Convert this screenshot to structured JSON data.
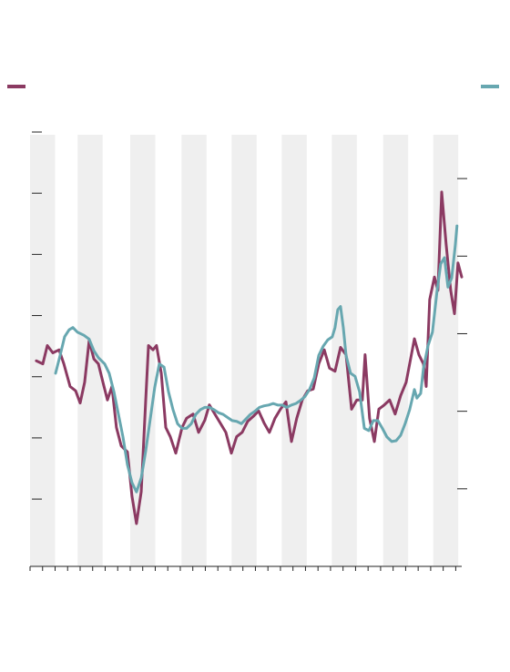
{
  "chart_data": {
    "type": "line",
    "xlim": [
      0,
      17.24
    ],
    "xticks": [
      0,
      0.5,
      1,
      1.5,
      2,
      2.5,
      3,
      3.5,
      4,
      4.5,
      5,
      5.5,
      6,
      6.5,
      7,
      7.5,
      8,
      8.5,
      9,
      9.5,
      10,
      10.5,
      11,
      11.5,
      12,
      12.5,
      13,
      13.5,
      14,
      14.5,
      15,
      15.5,
      16,
      16.5,
      17
    ],
    "ylim": [
      -0.1,
      7
    ],
    "yticks": [
      1,
      2,
      3,
      4,
      5,
      6,
      7
    ],
    "y2lim": [
      0,
      5.6
    ],
    "y2ticks": [
      1,
      2,
      3,
      4,
      5
    ],
    "xbands": [
      [
        0,
        1
      ],
      [
        1.9,
        2.9
      ],
      [
        4,
        5
      ],
      [
        6.05,
        7.05
      ],
      [
        8.05,
        9.05
      ],
      [
        10.05,
        11.05
      ],
      [
        12.05,
        13.05
      ],
      [
        14.1,
        15.1
      ],
      [
        16.1,
        17.1
      ]
    ],
    "band_color": "#efefef",
    "series": [
      {
        "color": "#8b3a62",
        "axis": "y",
        "x": [
          0.25,
          0.51,
          0.69,
          0.91,
          1.16,
          1.35,
          1.6,
          1.82,
          2.0,
          2.18,
          2.36,
          2.55,
          2.73,
          2.91,
          3.09,
          3.27,
          3.45,
          3.64,
          3.89,
          4.07,
          4.25,
          4.44,
          4.62,
          4.73,
          4.91,
          5.05,
          5.24,
          5.42,
          5.6,
          5.82,
          6.07,
          6.25,
          6.51,
          6.73,
          6.98,
          7.16,
          7.38,
          7.6,
          7.82,
          8.04,
          8.25,
          8.47,
          8.69,
          8.91,
          9.13,
          9.35,
          9.56,
          9.78,
          10.0,
          10.22,
          10.44,
          10.65,
          10.87,
          11.09,
          11.31,
          11.53,
          11.75,
          11.96,
          12.18,
          12.4,
          12.62,
          12.84,
          13.05,
          13.27,
          13.38,
          13.56,
          13.75,
          13.93,
          14.15,
          14.36,
          14.58,
          14.8,
          15.02,
          15.16,
          15.35,
          15.53,
          15.71,
          15.82,
          15.96,
          16.15,
          16.29,
          16.44,
          16.62,
          16.8,
          16.95,
          17.09,
          17.24
        ],
        "values": [
          3.26,
          3.21,
          3.51,
          3.39,
          3.44,
          3.21,
          2.84,
          2.77,
          2.57,
          2.91,
          3.59,
          3.29,
          3.21,
          2.91,
          2.62,
          2.84,
          2.17,
          1.87,
          1.77,
          1.05,
          0.6,
          1.12,
          2.62,
          3.51,
          3.44,
          3.51,
          3.06,
          2.17,
          2.02,
          1.75,
          2.17,
          2.32,
          2.39,
          2.09,
          2.29,
          2.54,
          2.39,
          2.24,
          2.09,
          1.75,
          2.02,
          2.09,
          2.27,
          2.35,
          2.44,
          2.24,
          2.09,
          2.32,
          2.47,
          2.59,
          1.94,
          2.32,
          2.62,
          2.77,
          2.8,
          3.21,
          3.44,
          3.14,
          3.09,
          3.48,
          3.36,
          2.47,
          2.62,
          2.62,
          3.36,
          2.32,
          1.94,
          2.47,
          2.54,
          2.62,
          2.39,
          2.69,
          2.91,
          3.21,
          3.62,
          3.36,
          3.21,
          2.84,
          4.26,
          4.63,
          4.41,
          6.02,
          5.15,
          4.41,
          4.03,
          4.86,
          4.63
        ]
      },
      {
        "color": "#67a7b0",
        "axis": "y2",
        "x": [
          1.02,
          1.2,
          1.38,
          1.56,
          1.71,
          1.89,
          2.15,
          2.36,
          2.55,
          2.73,
          2.98,
          3.16,
          3.35,
          3.53,
          3.71,
          3.89,
          4.07,
          4.25,
          4.44,
          4.62,
          4.8,
          4.98,
          5.16,
          5.35,
          5.53,
          5.71,
          5.89,
          6.07,
          6.25,
          6.44,
          6.62,
          6.8,
          6.98,
          7.16,
          7.35,
          7.53,
          7.71,
          7.89,
          8.07,
          8.25,
          8.44,
          8.62,
          8.8,
          8.98,
          9.16,
          9.35,
          9.53,
          9.71,
          9.89,
          10.07,
          10.25,
          10.44,
          10.62,
          10.8,
          10.98,
          11.16,
          11.35,
          11.53,
          11.71,
          11.89,
          12.07,
          12.18,
          12.29,
          12.4,
          12.51,
          12.62,
          12.8,
          12.98,
          13.16,
          13.35,
          13.53,
          13.71,
          13.89,
          14.07,
          14.25,
          14.44,
          14.62,
          14.8,
          14.98,
          15.16,
          15.35,
          15.45,
          15.6,
          15.71,
          15.89,
          16.07,
          16.25,
          16.4,
          16.55,
          16.69,
          16.84,
          16.98,
          17.05
        ],
        "values": [
          2.49,
          2.72,
          2.96,
          3.05,
          3.08,
          3.02,
          2.98,
          2.93,
          2.78,
          2.69,
          2.61,
          2.49,
          2.25,
          1.96,
          1.67,
          1.31,
          1.08,
          0.96,
          1.14,
          1.49,
          1.9,
          2.31,
          2.61,
          2.57,
          2.25,
          2.02,
          1.84,
          1.78,
          1.78,
          1.84,
          1.96,
          2.02,
          2.05,
          2.05,
          2.02,
          1.98,
          1.96,
          1.92,
          1.88,
          1.87,
          1.84,
          1.9,
          1.96,
          2.0,
          2.05,
          2.07,
          2.08,
          2.1,
          2.08,
          2.08,
          2.05,
          2.08,
          2.1,
          2.14,
          2.19,
          2.28,
          2.43,
          2.72,
          2.84,
          2.92,
          2.96,
          3.08,
          3.31,
          3.35,
          3.08,
          2.72,
          2.49,
          2.45,
          2.25,
          1.78,
          1.75,
          1.88,
          1.88,
          1.78,
          1.67,
          1.61,
          1.62,
          1.69,
          1.84,
          2.02,
          2.28,
          2.17,
          2.23,
          2.55,
          2.84,
          3.02,
          3.54,
          3.9,
          3.98,
          3.6,
          3.72,
          4.13,
          4.39
        ]
      }
    ]
  }
}
